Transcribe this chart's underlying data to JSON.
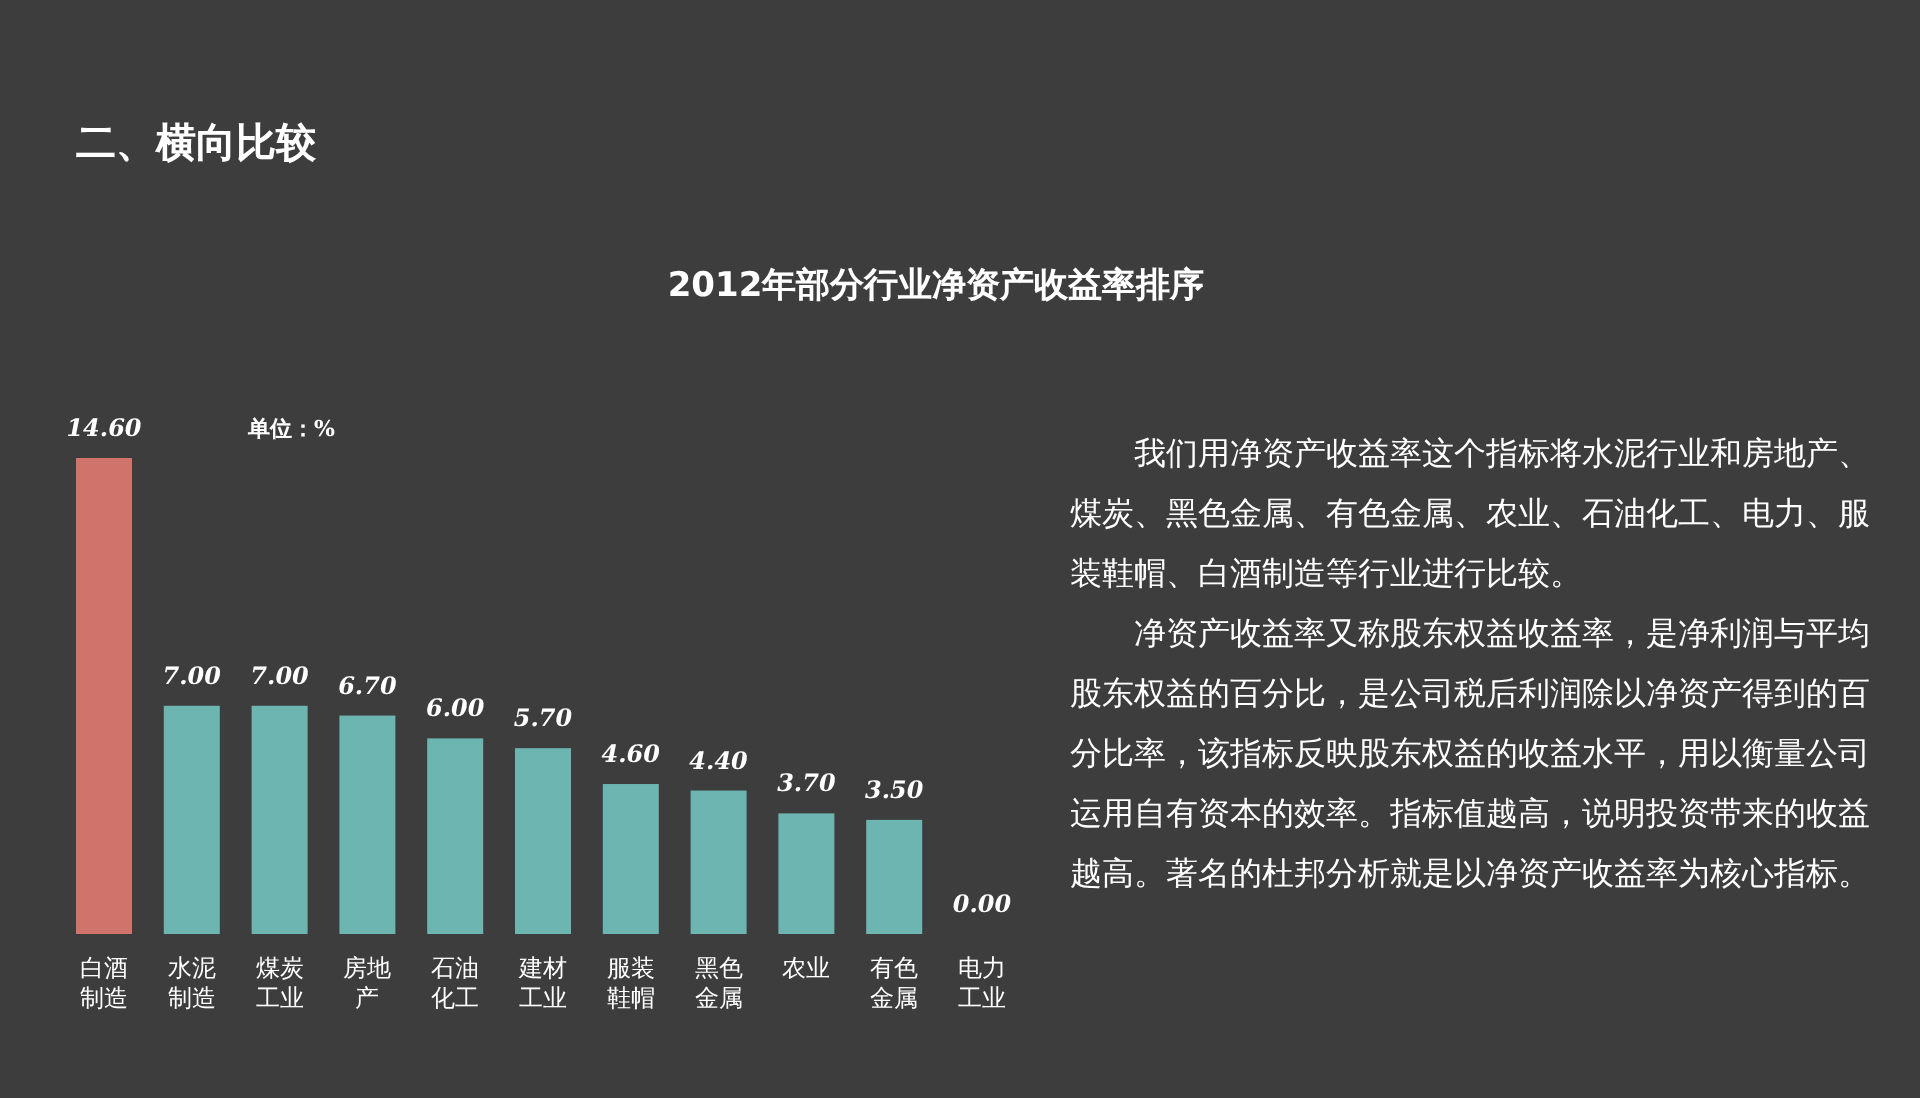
{
  "chart_data": {
    "type": "bar",
    "title": "2012年部分行业净资产收益率排序",
    "categories": [
      "白酒制造",
      "水泥制造",
      "煤炭工业",
      "房地产",
      "石油化工",
      "建材工业",
      "服装鞋帽",
      "黑色金属",
      "农业",
      "有色金属",
      "电力工业"
    ],
    "values": [
      14.6,
      7.0,
      7.0,
      6.7,
      6.0,
      5.7,
      4.6,
      4.4,
      3.7,
      3.5,
      0.0
    ],
    "value_labels": [
      "14.60",
      "7.00",
      "7.00",
      "6.70",
      "6.00",
      "5.70",
      "4.60",
      "4.40",
      "3.70",
      "3.50",
      "0.00"
    ],
    "colors": [
      "#d0736a",
      "#6db5b1",
      "#6db5b1",
      "#6db5b1",
      "#6db5b1",
      "#6db5b1",
      "#6db5b1",
      "#6db5b1",
      "#6db5b1",
      "#6db5b1",
      "#6db5b1"
    ],
    "annotations": [
      "二、横向比较",
      "单位：%",
      "我们用净资产收益率这个指标将水泥行业和房地产、煤炭、黑色金属、有色金属、农业、石油化工、电力、服装鞋帽、白酒制造等行业进行比较。",
      "净资产收益率又称股东权益收益率，是净利润与平均股东权益的百分比，是公司税后利润除以净资产得到的百分比率，该指标反映股东权益的收益水平，用以衡量公司运用自有资本的效率。指标值越高，说明投资带来的收益越高。著名的杜邦分析就是以净资产收益率为核心指标。"
    ]
  }
}
